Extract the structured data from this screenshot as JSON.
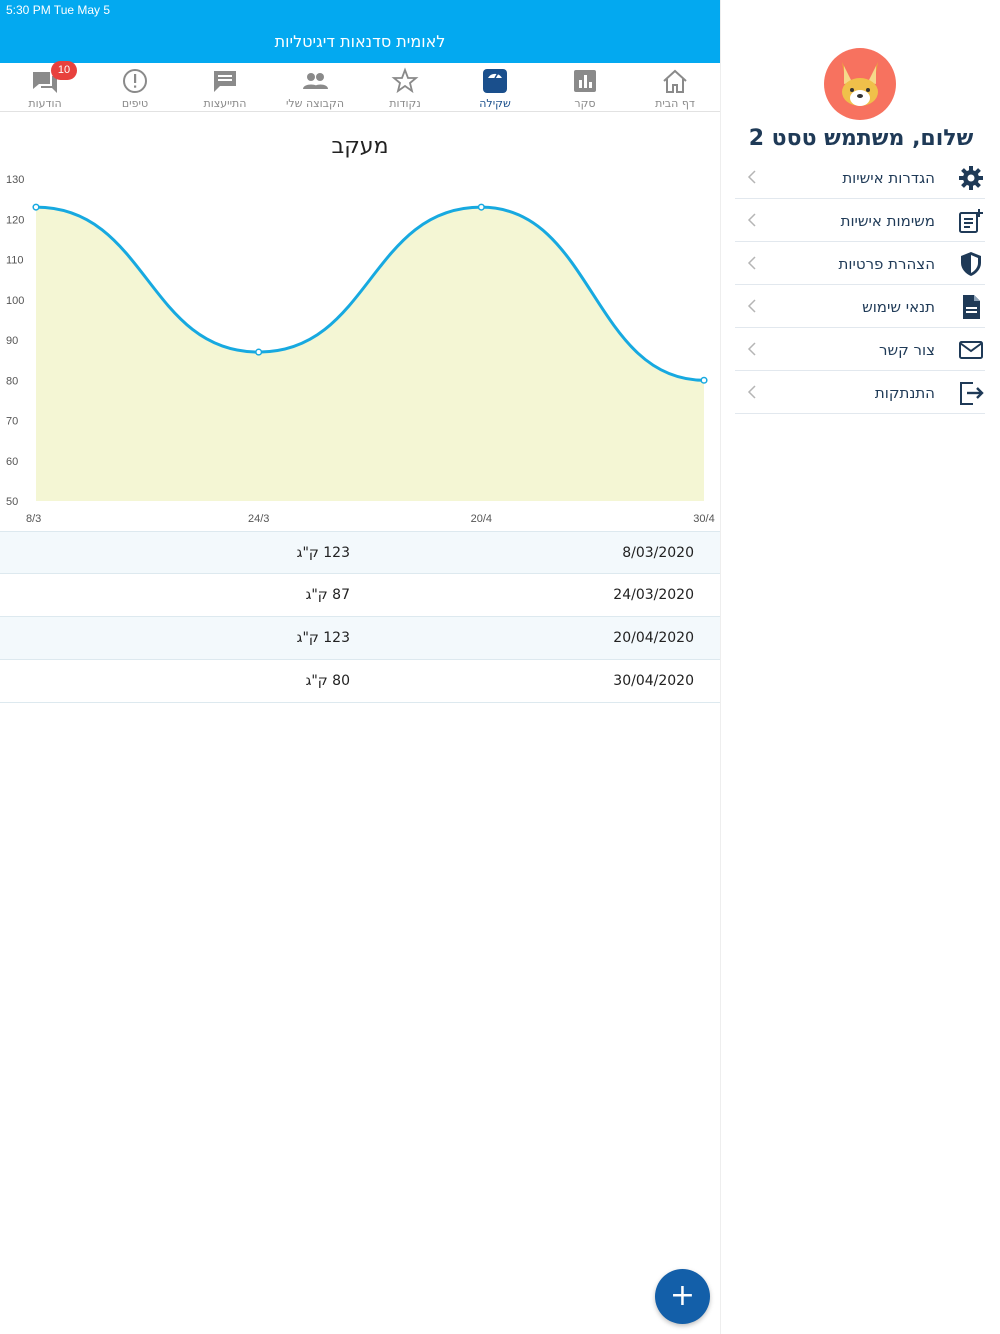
{
  "status": {
    "time": "5:30 PM   Tue May 5"
  },
  "header": {
    "title": "לאומית סדנאות דיגיטליות"
  },
  "tabs": [
    {
      "label": "דף הבית",
      "icon": "home-icon"
    },
    {
      "label": "סקר",
      "icon": "bar-chart-icon"
    },
    {
      "label": "שקילה",
      "icon": "scale-icon",
      "active": true
    },
    {
      "label": "נקודות",
      "icon": "star-icon"
    },
    {
      "label": "הקבוצה שלי",
      "icon": "group-icon"
    },
    {
      "label": "התייעצות",
      "icon": "chat-icon"
    },
    {
      "label": "טיפים",
      "icon": "alert-icon"
    },
    {
      "label": "הודעות",
      "icon": "messages-icon",
      "badge": "10"
    }
  ],
  "chart_data": {
    "type": "area",
    "title": "מעקב",
    "categories": [
      "8/3",
      "24/3",
      "20/4",
      "30/4"
    ],
    "values": [
      123,
      87,
      123,
      80
    ],
    "ylim": [
      50,
      130
    ],
    "yticks": [
      50,
      60,
      70,
      80,
      90,
      100,
      110,
      120,
      130
    ],
    "line_color": "#17a9e0",
    "fill_color": "#f4f6d4"
  },
  "table": {
    "rows": [
      {
        "date": "8/03/2020",
        "weight": "123 ק\"ג"
      },
      {
        "date": "24/03/2020",
        "weight": "87 ק\"ג"
      },
      {
        "date": "20/04/2020",
        "weight": "123 ק\"ג"
      },
      {
        "date": "30/04/2020",
        "weight": "80 ק\"ג"
      }
    ]
  },
  "fab": {
    "label": "+"
  },
  "side": {
    "greeting": "שלום, משתמש טסט 2",
    "menu": [
      {
        "label": "הגדרות אישיות",
        "icon": "gear-icon"
      },
      {
        "label": "משימות אישיות",
        "icon": "task-list-icon"
      },
      {
        "label": "הצהרת פרטיות",
        "icon": "shield-icon"
      },
      {
        "label": "תנאי שימוש",
        "icon": "document-icon"
      },
      {
        "label": "צור קשר",
        "icon": "mail-icon"
      },
      {
        "label": "התנתקות",
        "icon": "logout-icon"
      }
    ]
  }
}
